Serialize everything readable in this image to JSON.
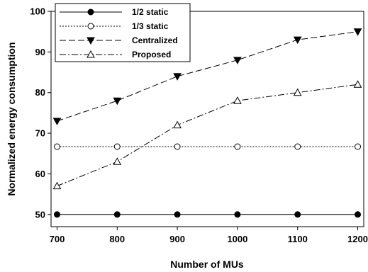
{
  "chart_data": {
    "type": "line",
    "xlabel": "Number of MUs",
    "ylabel": "Normalized energy consumption",
    "xlim": [
      690,
      1210
    ],
    "ylim": [
      47,
      100
    ],
    "xticks": [
      700,
      800,
      900,
      1000,
      1100,
      1200
    ],
    "yticks": [
      50,
      60,
      70,
      80,
      90,
      100
    ],
    "x": [
      700,
      800,
      900,
      1000,
      1100,
      1200
    ],
    "grid": false,
    "legend_position": "top-left",
    "series": [
      {
        "name": "1/2 static",
        "values": [
          50,
          50,
          50,
          50,
          50,
          50
        ],
        "marker": "filled-circle",
        "line": "solid"
      },
      {
        "name": "1/3 static",
        "values": [
          66.7,
          66.7,
          66.7,
          66.7,
          66.7,
          66.7
        ],
        "marker": "open-circle",
        "line": "dotted"
      },
      {
        "name": "Centralized",
        "values": [
          73,
          78,
          84,
          88,
          93,
          95
        ],
        "marker": "filled-triangle-down",
        "line": "dashed"
      },
      {
        "name": "Proposed",
        "values": [
          57,
          63,
          72,
          78,
          80,
          82
        ],
        "marker": "open-triangle-up",
        "line": "dash-dot"
      }
    ]
  }
}
